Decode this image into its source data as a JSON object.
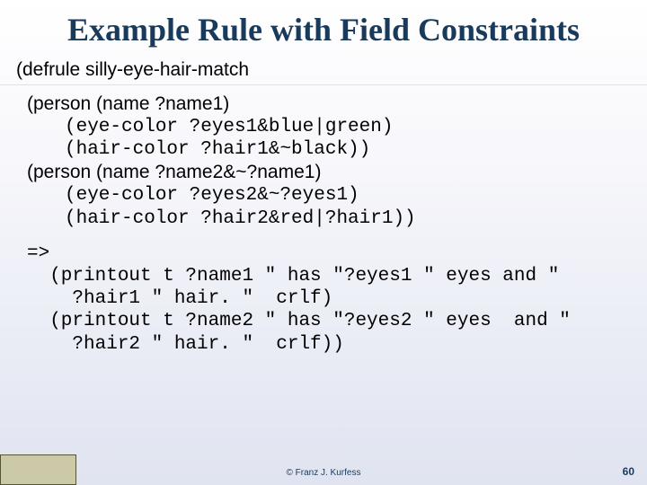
{
  "colors": {
    "title_color": "#1a3a5c",
    "text_color": "#000000",
    "footer_box_fill": "#ccc9a8",
    "footer_box_border": "#555533",
    "bg_top": "#ffffff",
    "bg_bottom": "#e0e4f0"
  },
  "typography": {
    "title_font": "Times New Roman",
    "title_size_pt": 36,
    "body_sans_size_pt": 21,
    "body_mono_size_pt": 21,
    "footer_size_pt": 10,
    "pagenum_size_pt": 12
  },
  "title": "Example Rule with Field Constraints",
  "rule_header": "(defrule silly-eye-hair-match",
  "l_person1_open": "(person (name ?name1)",
  "l_eye1": "(eye-color ?eyes1&blue|green)",
  "l_hair1": "(hair-color ?hair1&~black))",
  "l_person2_open": "(person (name ?name2&~?name1)",
  "l_eye2": "(eye-color ?eyes2&~?eyes1)",
  "l_hair2": "(hair-color ?hair2&red|?hair1))",
  "l_arrow": "=>",
  "l_print1a": "  (printout t ?name1 \" has \"?eyes1 \" eyes and \"",
  "l_print1b": "    ?hair1 \" hair. \"  crlf)",
  "l_print2a": "  (printout t ?name2 \" has \"?eyes2 \" eyes  and \"",
  "l_print2b": "    ?hair2 \" hair. \"  crlf))",
  "copyright": "© Franz J. Kurfess",
  "page_number": "60"
}
